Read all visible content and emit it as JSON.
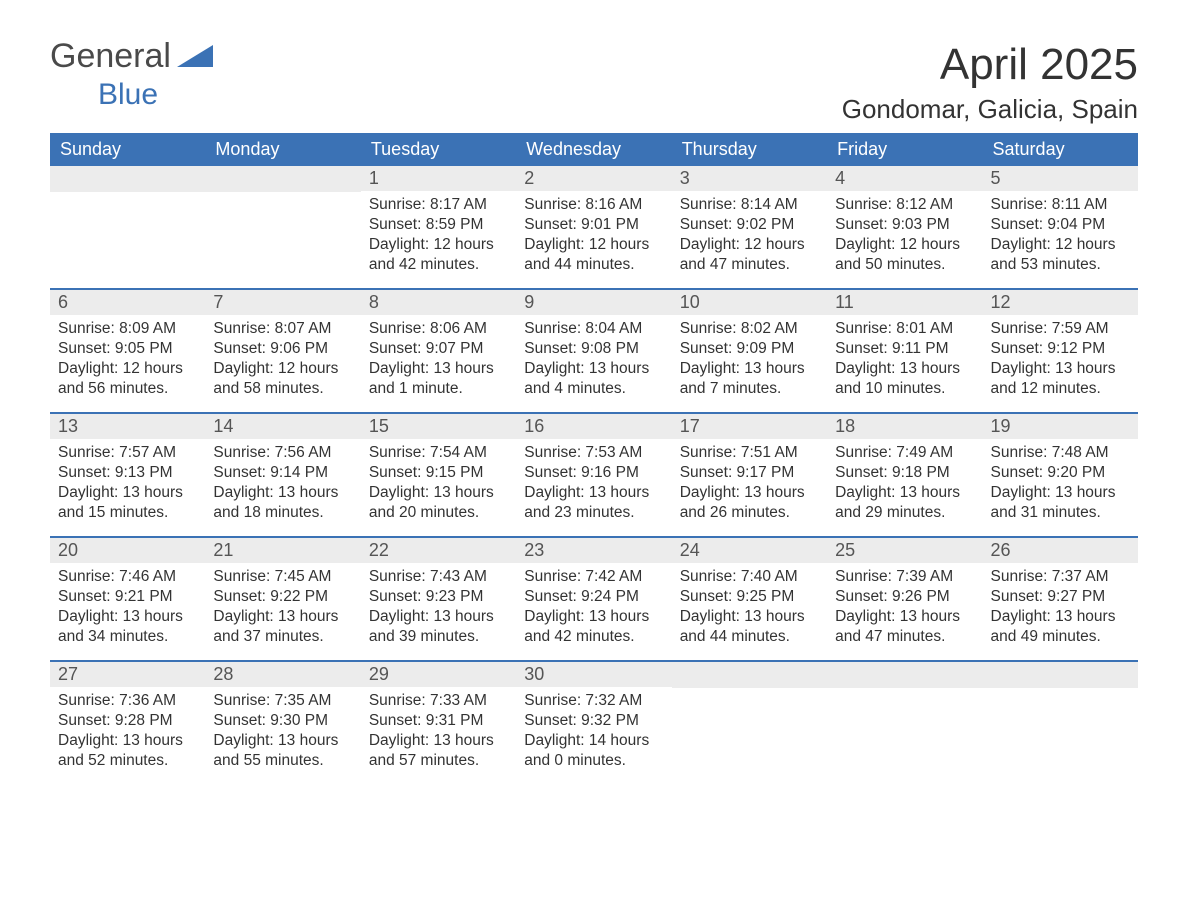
{
  "brand": {
    "general": "General",
    "blue": "Blue",
    "accent_color": "#3b72b5"
  },
  "title": "April 2025",
  "location": "Gondomar, Galicia, Spain",
  "styling": {
    "header_bg": "#3b72b5",
    "header_text": "#ffffff",
    "daybar_bg": "#ececec",
    "row_border": "#3b72b5",
    "body_text": "#333333",
    "page_bg": "#ffffff",
    "title_fontsize": 44,
    "location_fontsize": 26,
    "header_fontsize": 18,
    "cell_fontsize": 15.5
  },
  "weekdays": [
    "Sunday",
    "Monday",
    "Tuesday",
    "Wednesday",
    "Thursday",
    "Friday",
    "Saturday"
  ],
  "weeks": [
    [
      null,
      null,
      {
        "n": "1",
        "sr": "Sunrise: 8:17 AM",
        "ss": "Sunset: 8:59 PM",
        "dl": "Daylight: 12 hours and 42 minutes."
      },
      {
        "n": "2",
        "sr": "Sunrise: 8:16 AM",
        "ss": "Sunset: 9:01 PM",
        "dl": "Daylight: 12 hours and 44 minutes."
      },
      {
        "n": "3",
        "sr": "Sunrise: 8:14 AM",
        "ss": "Sunset: 9:02 PM",
        "dl": "Daylight: 12 hours and 47 minutes."
      },
      {
        "n": "4",
        "sr": "Sunrise: 8:12 AM",
        "ss": "Sunset: 9:03 PM",
        "dl": "Daylight: 12 hours and 50 minutes."
      },
      {
        "n": "5",
        "sr": "Sunrise: 8:11 AM",
        "ss": "Sunset: 9:04 PM",
        "dl": "Daylight: 12 hours and 53 minutes."
      }
    ],
    [
      {
        "n": "6",
        "sr": "Sunrise: 8:09 AM",
        "ss": "Sunset: 9:05 PM",
        "dl": "Daylight: 12 hours and 56 minutes."
      },
      {
        "n": "7",
        "sr": "Sunrise: 8:07 AM",
        "ss": "Sunset: 9:06 PM",
        "dl": "Daylight: 12 hours and 58 minutes."
      },
      {
        "n": "8",
        "sr": "Sunrise: 8:06 AM",
        "ss": "Sunset: 9:07 PM",
        "dl": "Daylight: 13 hours and 1 minute."
      },
      {
        "n": "9",
        "sr": "Sunrise: 8:04 AM",
        "ss": "Sunset: 9:08 PM",
        "dl": "Daylight: 13 hours and 4 minutes."
      },
      {
        "n": "10",
        "sr": "Sunrise: 8:02 AM",
        "ss": "Sunset: 9:09 PM",
        "dl": "Daylight: 13 hours and 7 minutes."
      },
      {
        "n": "11",
        "sr": "Sunrise: 8:01 AM",
        "ss": "Sunset: 9:11 PM",
        "dl": "Daylight: 13 hours and 10 minutes."
      },
      {
        "n": "12",
        "sr": "Sunrise: 7:59 AM",
        "ss": "Sunset: 9:12 PM",
        "dl": "Daylight: 13 hours and 12 minutes."
      }
    ],
    [
      {
        "n": "13",
        "sr": "Sunrise: 7:57 AM",
        "ss": "Sunset: 9:13 PM",
        "dl": "Daylight: 13 hours and 15 minutes."
      },
      {
        "n": "14",
        "sr": "Sunrise: 7:56 AM",
        "ss": "Sunset: 9:14 PM",
        "dl": "Daylight: 13 hours and 18 minutes."
      },
      {
        "n": "15",
        "sr": "Sunrise: 7:54 AM",
        "ss": "Sunset: 9:15 PM",
        "dl": "Daylight: 13 hours and 20 minutes."
      },
      {
        "n": "16",
        "sr": "Sunrise: 7:53 AM",
        "ss": "Sunset: 9:16 PM",
        "dl": "Daylight: 13 hours and 23 minutes."
      },
      {
        "n": "17",
        "sr": "Sunrise: 7:51 AM",
        "ss": "Sunset: 9:17 PM",
        "dl": "Daylight: 13 hours and 26 minutes."
      },
      {
        "n": "18",
        "sr": "Sunrise: 7:49 AM",
        "ss": "Sunset: 9:18 PM",
        "dl": "Daylight: 13 hours and 29 minutes."
      },
      {
        "n": "19",
        "sr": "Sunrise: 7:48 AM",
        "ss": "Sunset: 9:20 PM",
        "dl": "Daylight: 13 hours and 31 minutes."
      }
    ],
    [
      {
        "n": "20",
        "sr": "Sunrise: 7:46 AM",
        "ss": "Sunset: 9:21 PM",
        "dl": "Daylight: 13 hours and 34 minutes."
      },
      {
        "n": "21",
        "sr": "Sunrise: 7:45 AM",
        "ss": "Sunset: 9:22 PM",
        "dl": "Daylight: 13 hours and 37 minutes."
      },
      {
        "n": "22",
        "sr": "Sunrise: 7:43 AM",
        "ss": "Sunset: 9:23 PM",
        "dl": "Daylight: 13 hours and 39 minutes."
      },
      {
        "n": "23",
        "sr": "Sunrise: 7:42 AM",
        "ss": "Sunset: 9:24 PM",
        "dl": "Daylight: 13 hours and 42 minutes."
      },
      {
        "n": "24",
        "sr": "Sunrise: 7:40 AM",
        "ss": "Sunset: 9:25 PM",
        "dl": "Daylight: 13 hours and 44 minutes."
      },
      {
        "n": "25",
        "sr": "Sunrise: 7:39 AM",
        "ss": "Sunset: 9:26 PM",
        "dl": "Daylight: 13 hours and 47 minutes."
      },
      {
        "n": "26",
        "sr": "Sunrise: 7:37 AM",
        "ss": "Sunset: 9:27 PM",
        "dl": "Daylight: 13 hours and 49 minutes."
      }
    ],
    [
      {
        "n": "27",
        "sr": "Sunrise: 7:36 AM",
        "ss": "Sunset: 9:28 PM",
        "dl": "Daylight: 13 hours and 52 minutes."
      },
      {
        "n": "28",
        "sr": "Sunrise: 7:35 AM",
        "ss": "Sunset: 9:30 PM",
        "dl": "Daylight: 13 hours and 55 minutes."
      },
      {
        "n": "29",
        "sr": "Sunrise: 7:33 AM",
        "ss": "Sunset: 9:31 PM",
        "dl": "Daylight: 13 hours and 57 minutes."
      },
      {
        "n": "30",
        "sr": "Sunrise: 7:32 AM",
        "ss": "Sunset: 9:32 PM",
        "dl": "Daylight: 14 hours and 0 minutes."
      },
      null,
      null,
      null
    ]
  ]
}
